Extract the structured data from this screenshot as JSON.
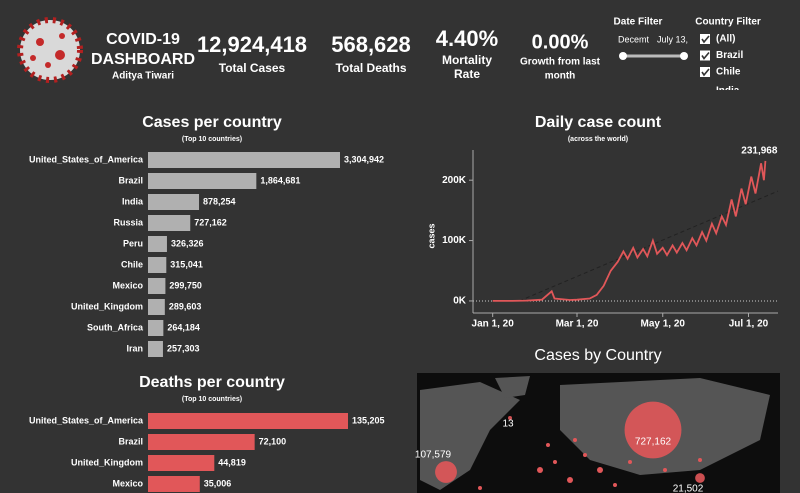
{
  "header": {
    "title_lines": [
      "COVID-19",
      "DASHBOARD"
    ],
    "author": "Aditya Tiwari"
  },
  "kpis": [
    {
      "value": "12,924,418",
      "label_lines": [
        "Total Cases"
      ]
    },
    {
      "value": "568,628",
      "label_lines": [
        "Total Deaths"
      ]
    },
    {
      "value": "4.40%",
      "label_lines": [
        "Mortality",
        "Rate"
      ]
    },
    {
      "value": "0.00%",
      "label_lines": [
        "Growth from last",
        "month"
      ]
    }
  ],
  "filters": {
    "date_filter": {
      "title": "Date Filter",
      "start": "Decemt",
      "end": "July 13,"
    },
    "country_filter": {
      "title": "Country Filter",
      "options": [
        "(All)",
        "Brazil",
        "Chile",
        "India"
      ]
    }
  },
  "cases_chart": {
    "type": "bar",
    "title": "Cases per country",
    "subtitle": "(Top 10 countries)",
    "color": "#b0b0b0",
    "categories": [
      "United_States_of_America",
      "Brazil",
      "India",
      "Russia",
      "Peru",
      "Chile",
      "Mexico",
      "United_Kingdom",
      "South_Africa",
      "Iran"
    ],
    "values": [
      3304942,
      1864681,
      878254,
      727162,
      326326,
      315041,
      299750,
      289603,
      264184,
      257303
    ],
    "value_labels": [
      "3,304,942",
      "1,864,681",
      "878,254",
      "727,162",
      "326,326",
      "315,041",
      "299,750",
      "289,603",
      "264,184",
      "257,303"
    ]
  },
  "deaths_chart": {
    "type": "bar",
    "title": "Deaths per country",
    "subtitle": "(Top 10 countries)",
    "color": "#e15759",
    "categories": [
      "United_States_of_America",
      "Brazil",
      "United_Kingdom",
      "Mexico"
    ],
    "values": [
      135205,
      72100,
      44819,
      35006
    ],
    "value_labels": [
      "135,205",
      "72,100",
      "44,819",
      "35,006"
    ]
  },
  "daily_chart": {
    "type": "line",
    "title": "Daily case count",
    "subtitle": "(across the world)",
    "y_label": "cases",
    "color": "#e15759",
    "x": [
      "2020-01-01",
      "2020-01-15",
      "2020-01-25",
      "2020-02-05",
      "2020-02-12",
      "2020-02-14",
      "2020-02-25",
      "2020-03-01",
      "2020-03-10",
      "2020-03-15",
      "2020-03-20",
      "2020-03-25",
      "2020-03-30",
      "2020-04-03",
      "2020-04-06",
      "2020-04-10",
      "2020-04-13",
      "2020-04-17",
      "2020-04-20",
      "2020-04-24",
      "2020-04-27",
      "2020-05-01",
      "2020-05-04",
      "2020-05-08",
      "2020-05-11",
      "2020-05-15",
      "2020-05-18",
      "2020-05-22",
      "2020-05-25",
      "2020-05-29",
      "2020-06-01",
      "2020-06-05",
      "2020-06-08",
      "2020-06-12",
      "2020-06-15",
      "2020-06-19",
      "2020-06-22",
      "2020-06-26",
      "2020-06-29",
      "2020-07-03",
      "2020-07-06",
      "2020-07-10",
      "2020-07-12",
      "2020-07-13"
    ],
    "values": [
      0,
      0,
      500,
      2000,
      16000,
      4000,
      1500,
      2000,
      4000,
      10000,
      25000,
      50000,
      65000,
      82000,
      70000,
      88000,
      72000,
      86000,
      74000,
      100000,
      78000,
      88000,
      76000,
      92000,
      80000,
      96000,
      84000,
      104000,
      92000,
      114000,
      100000,
      128000,
      112000,
      140000,
      126000,
      168000,
      140000,
      186000,
      160000,
      206000,
      178000,
      228000,
      200000,
      231968
    ],
    "trend": {
      "x": [
        "2020-01-20",
        "2020-07-22"
      ],
      "values": [
        0,
        182000
      ]
    },
    "annotation": "231,968",
    "xlim": [
      "2019-12-18",
      "2020-07-22"
    ],
    "ylim": [
      -15000,
      250000
    ],
    "xticks": [
      {
        "value": "2020-01-01",
        "label": "Jan 1, 20"
      },
      {
        "value": "2020-03-01",
        "label": "Mar 1, 20"
      },
      {
        "value": "2020-05-01",
        "label": "May 1, 20"
      },
      {
        "value": "2020-07-01",
        "label": "Jul 1, 20"
      }
    ],
    "yticks": [
      {
        "value": 0,
        "label": "0K"
      },
      {
        "value": 100000,
        "label": "100K"
      },
      {
        "value": 200000,
        "label": "200K"
      }
    ]
  },
  "map": {
    "title": "Cases by Country",
    "bubbles": [
      {
        "label": "107,579",
        "value": 107579
      },
      {
        "label": "13",
        "value": 13
      },
      {
        "label": "727,162",
        "value": 727162
      },
      {
        "label": "21,502",
        "value": 21502
      }
    ]
  }
}
